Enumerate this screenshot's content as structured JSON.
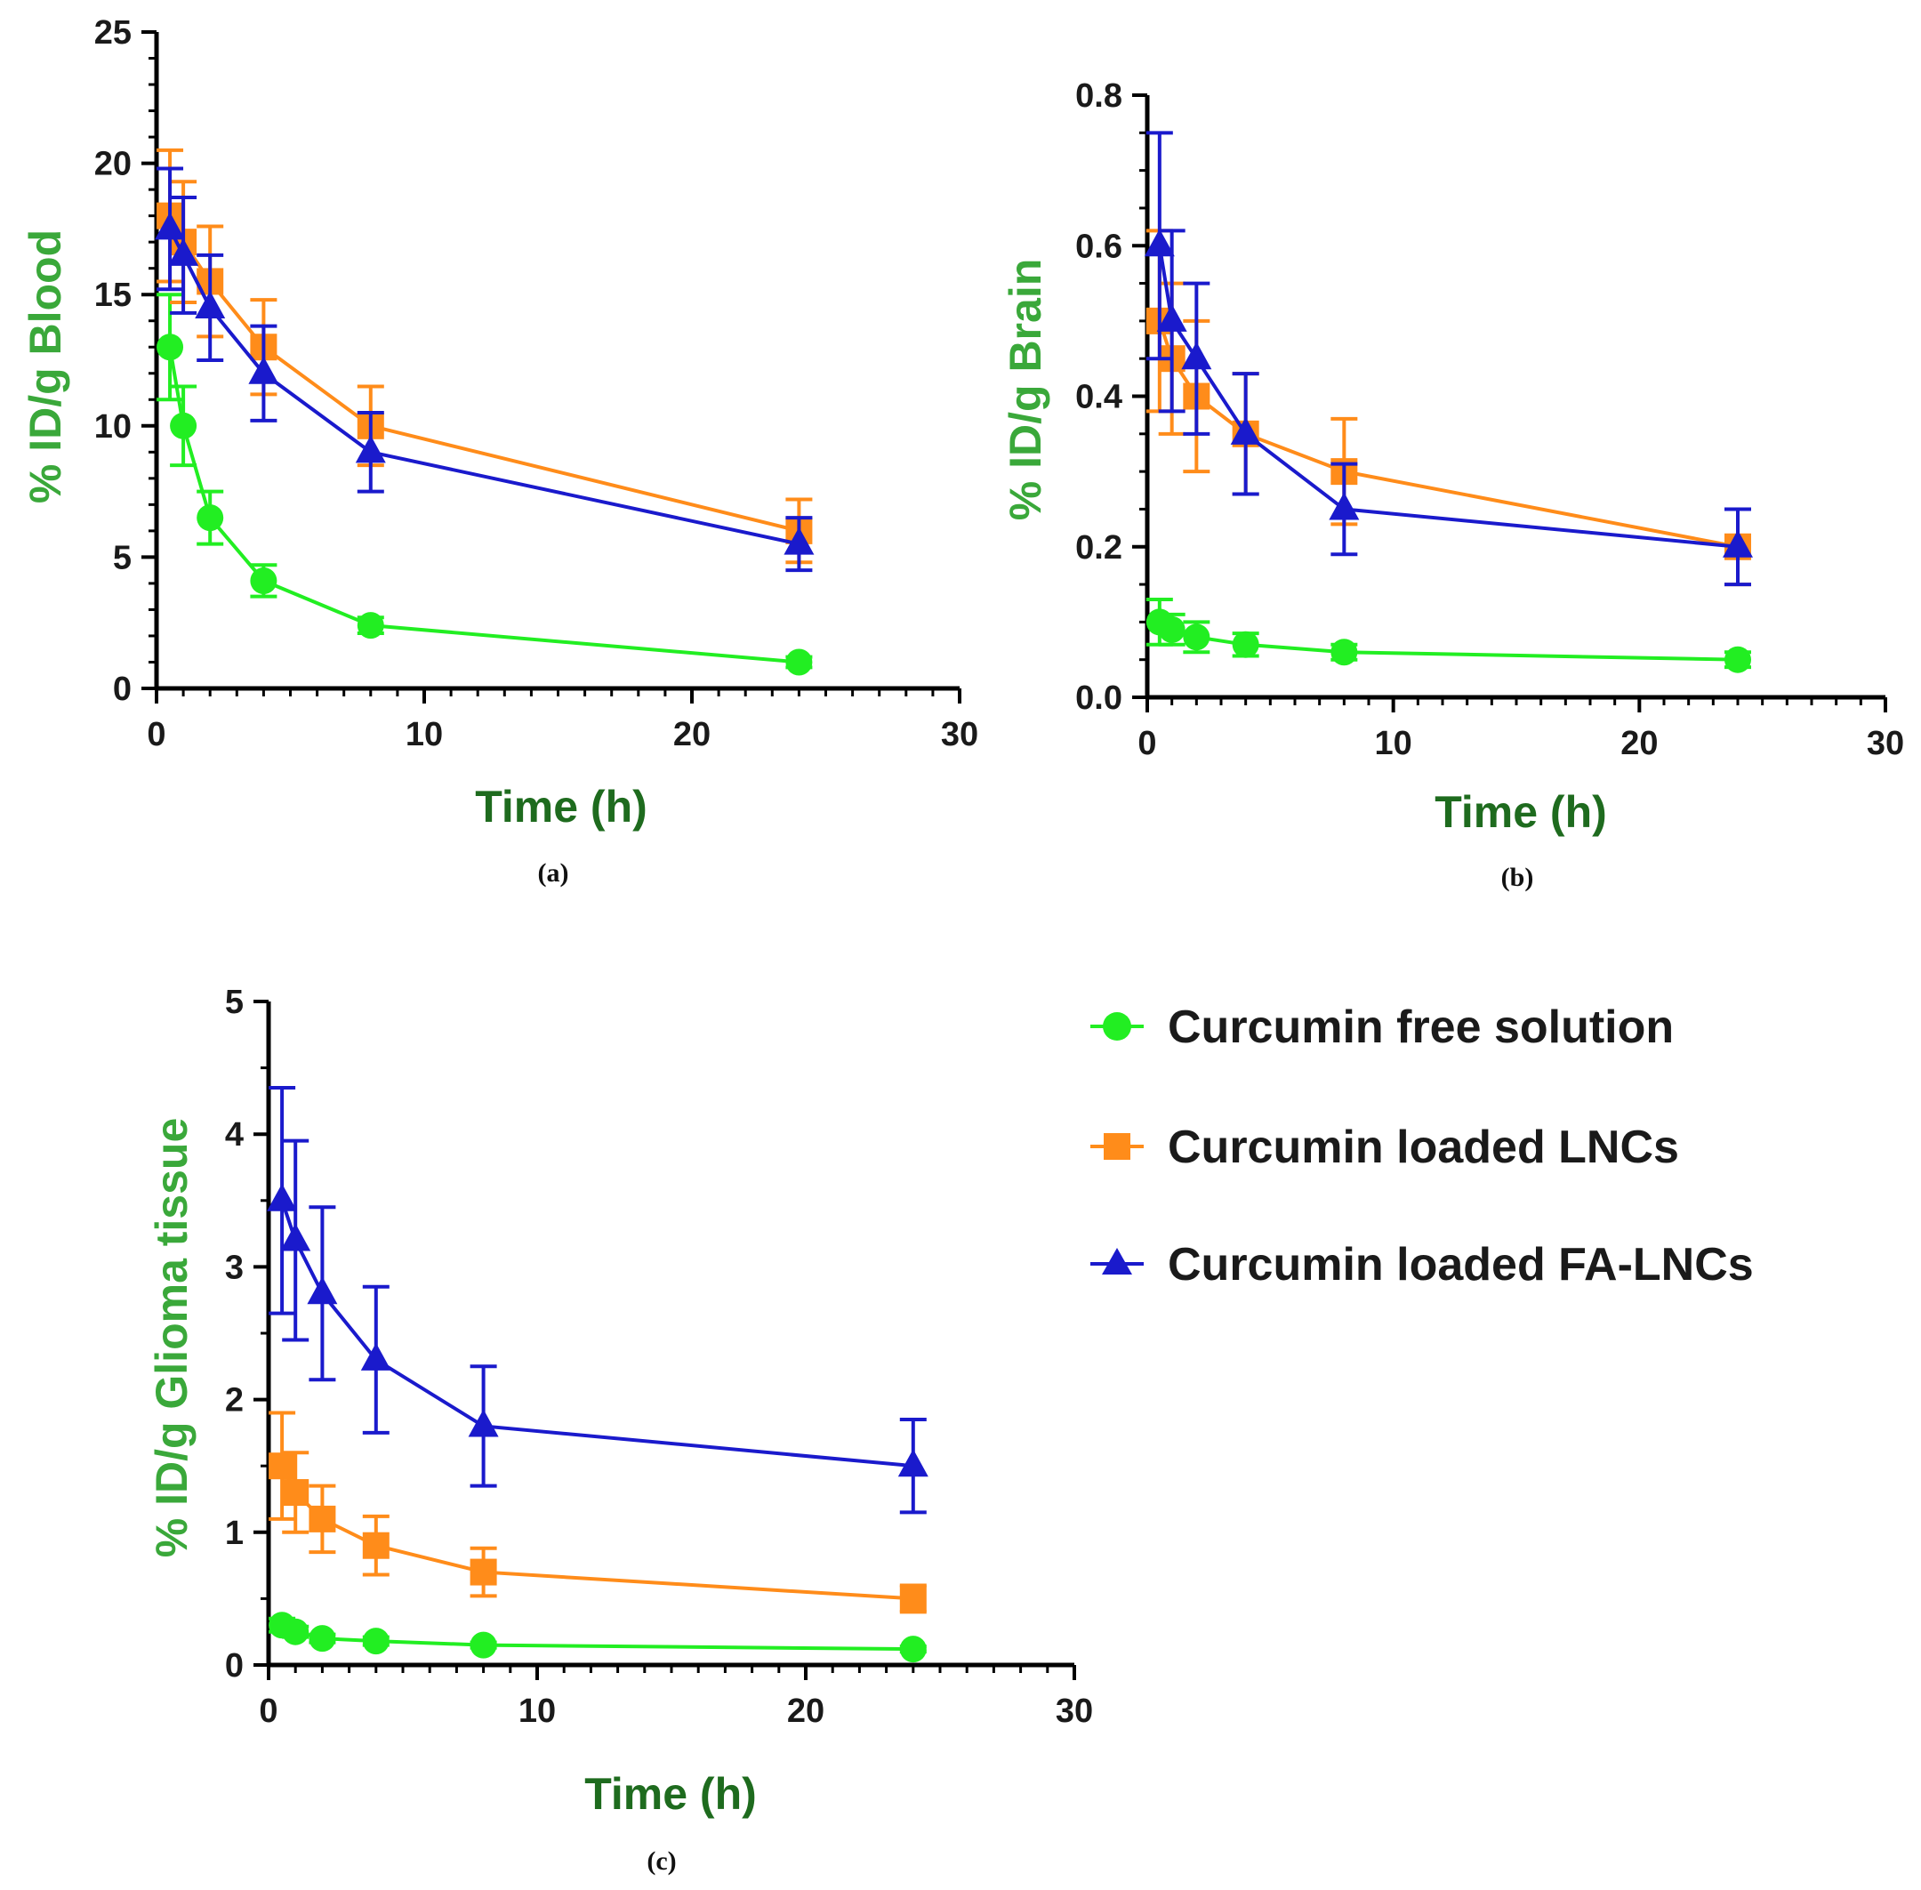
{
  "colors": {
    "free": "#22ee22",
    "lnc": "#ff8c1a",
    "fa": "#1a1acc",
    "xtitle": "#1e6b1e",
    "ytitle": "#3aa83a",
    "axis": "#000000"
  },
  "legend": {
    "items": [
      {
        "label": "Curcumin free solution",
        "color": "#22ee22",
        "marker": "circle"
      },
      {
        "label": "Curcumin loaded LNCs",
        "color": "#ff8c1a",
        "marker": "square"
      },
      {
        "label": "Curcumin loaded FA-LNCs",
        "color": "#1a1acc",
        "marker": "triangle"
      }
    ]
  },
  "chart_data": [
    {
      "type": "line",
      "caption": "(a)",
      "xlabel": "Time (h)",
      "ylabel": "% ID/g Blood",
      "xlim": [
        0,
        30
      ],
      "ylim": [
        0,
        25
      ],
      "xticks": [
        0,
        10,
        20,
        30
      ],
      "xtick_labels": [
        "0",
        "10",
        "20",
        "30"
      ],
      "yticks": [
        0,
        5,
        10,
        15,
        20,
        25
      ],
      "ytick_labels": [
        "0",
        "5",
        "10",
        "15",
        "20",
        "25"
      ],
      "x": [
        0.5,
        1,
        2,
        4,
        8,
        24
      ],
      "series": [
        {
          "name": "Curcumin free solution",
          "marker": "circle",
          "values": [
            13,
            10,
            6.5,
            4.1,
            2.4,
            1.0
          ],
          "errors": [
            2.0,
            1.5,
            1.0,
            0.6,
            0.3,
            0.2
          ]
        },
        {
          "name": "Curcumin loaded LNCs",
          "marker": "square",
          "values": [
            18,
            17,
            15.5,
            13,
            10,
            6
          ],
          "errors": [
            2.5,
            2.3,
            2.1,
            1.8,
            1.5,
            1.2
          ]
        },
        {
          "name": "Curcumin loaded FA-LNCs",
          "marker": "triangle",
          "values": [
            17.5,
            16.5,
            14.5,
            12,
            9,
            5.5
          ],
          "errors": [
            2.3,
            2.2,
            2.0,
            1.8,
            1.5,
            1.0
          ]
        }
      ]
    },
    {
      "type": "line",
      "caption": "(b)",
      "xlabel": "Time (h)",
      "ylabel": "% ID/g Brain",
      "xlim": [
        0,
        30
      ],
      "ylim": [
        0,
        0.8
      ],
      "xticks": [
        0,
        10,
        20,
        30
      ],
      "xtick_labels": [
        "0",
        "10",
        "20",
        "30"
      ],
      "yticks": [
        0,
        0.2,
        0.4,
        0.6,
        0.8
      ],
      "ytick_labels": [
        "0.0",
        "0.2",
        "0.4",
        "0.6",
        "0.8"
      ],
      "x": [
        0.5,
        1,
        2,
        4,
        8,
        24
      ],
      "series": [
        {
          "name": "Curcumin free solution",
          "marker": "circle",
          "values": [
            0.1,
            0.09,
            0.08,
            0.07,
            0.06,
            0.05
          ],
          "errors": [
            0.03,
            0.02,
            0.02,
            0.015,
            0.01,
            0.01
          ]
        },
        {
          "name": "Curcumin loaded LNCs",
          "marker": "square",
          "values": [
            0.5,
            0.45,
            0.4,
            0.35,
            0.3,
            0.2
          ],
          "errors": [
            0.12,
            0.1,
            0.1,
            0.08,
            0.07,
            0.05
          ]
        },
        {
          "name": "Curcumin loaded FA-LNCs",
          "marker": "triangle",
          "values": [
            0.6,
            0.5,
            0.45,
            0.35,
            0.25,
            0.2
          ],
          "errors": [
            0.15,
            0.12,
            0.1,
            0.08,
            0.06,
            0.05
          ]
        }
      ]
    },
    {
      "type": "line",
      "caption": "(c)",
      "xlabel": "Time (h)",
      "ylabel": "% ID/g Glioma tissue",
      "xlim": [
        0,
        30
      ],
      "ylim": [
        0,
        5
      ],
      "xticks": [
        0,
        10,
        20,
        30
      ],
      "xtick_labels": [
        "0",
        "10",
        "20",
        "30"
      ],
      "yticks": [
        0,
        1,
        2,
        3,
        4,
        5
      ],
      "ytick_labels": [
        "0",
        "1",
        "2",
        "3",
        "4",
        "5"
      ],
      "x": [
        0.5,
        1,
        2,
        4,
        8,
        24
      ],
      "series": [
        {
          "name": "Curcumin free solution",
          "marker": "circle",
          "values": [
            0.3,
            0.25,
            0.2,
            0.18,
            0.15,
            0.12
          ],
          "errors": [
            0.05,
            0.04,
            0.03,
            0.03,
            0.02,
            0.02
          ]
        },
        {
          "name": "Curcumin loaded LNCs",
          "marker": "square",
          "values": [
            1.5,
            1.3,
            1.1,
            0.9,
            0.7,
            0.5
          ],
          "errors": [
            0.4,
            0.3,
            0.25,
            0.22,
            0.18,
            0.1
          ]
        },
        {
          "name": "Curcumin loaded FA-LNCs",
          "marker": "triangle",
          "values": [
            3.5,
            3.2,
            2.8,
            2.3,
            1.8,
            1.5
          ],
          "errors": [
            0.85,
            0.75,
            0.65,
            0.55,
            0.45,
            0.35
          ]
        }
      ]
    }
  ]
}
